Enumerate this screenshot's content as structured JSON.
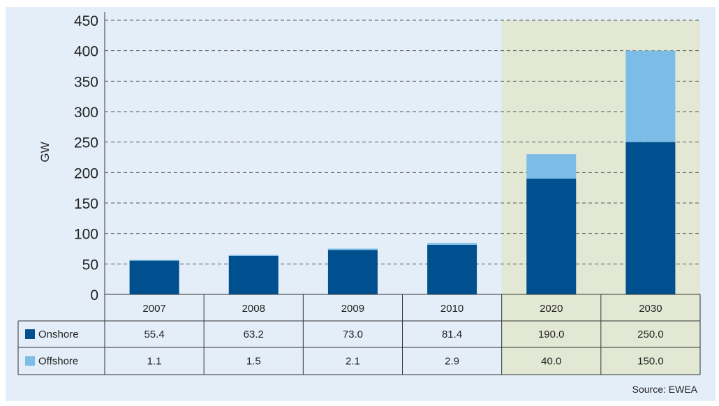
{
  "chart_data": {
    "type": "bar",
    "stacked": true,
    "ylabel": "GW",
    "ylim": [
      0,
      450
    ],
    "yticks": [
      0,
      50,
      100,
      150,
      200,
      250,
      300,
      350,
      400,
      450
    ],
    "grid": true,
    "categories": [
      "2007",
      "2008",
      "2009",
      "2010",
      "2020",
      "2030"
    ],
    "highlight_categories": [
      "2020",
      "2030"
    ],
    "series": [
      {
        "name": "Onshore",
        "values": [
          55.4,
          63.2,
          73.0,
          81.4,
          190.0,
          250.0
        ],
        "labels": [
          "55.4",
          "63.2",
          "73.0",
          "81.4",
          "190.0",
          "250.0"
        ],
        "color": "#00508f"
      },
      {
        "name": "Offshore",
        "values": [
          1.1,
          1.5,
          2.1,
          2.9,
          40.0,
          150.0
        ],
        "labels": [
          "1.1",
          "1.5",
          "2.1",
          "2.9",
          "40.0",
          "150.0"
        ],
        "color": "#7bbde6"
      }
    ],
    "source": "Source: EWEA",
    "colors": {
      "background": "#e3eef8",
      "highlight_background": "#e2e8d3",
      "grid": "#555555",
      "text": "#222222"
    }
  }
}
